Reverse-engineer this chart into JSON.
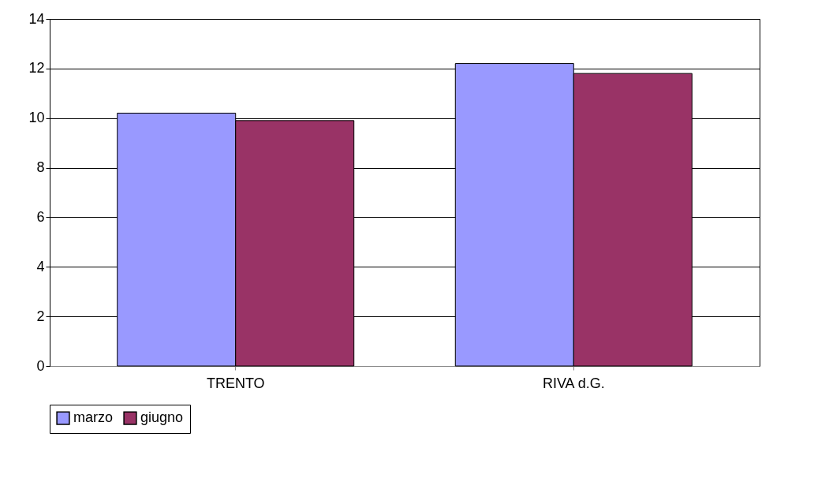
{
  "chart_data": {
    "type": "bar",
    "categories": [
      "TRENTO",
      "RIVA d.G."
    ],
    "series": [
      {
        "name": "marzo",
        "color": "#9999ff",
        "values": [
          10.2,
          12.2
        ]
      },
      {
        "name": "giugno",
        "color": "#993366",
        "values": [
          9.9,
          11.8
        ]
      }
    ],
    "ylim": [
      0,
      14
    ],
    "yticks": [
      0,
      2,
      4,
      6,
      8,
      10,
      12,
      14
    ],
    "grid": "y",
    "legend": "bottom"
  }
}
